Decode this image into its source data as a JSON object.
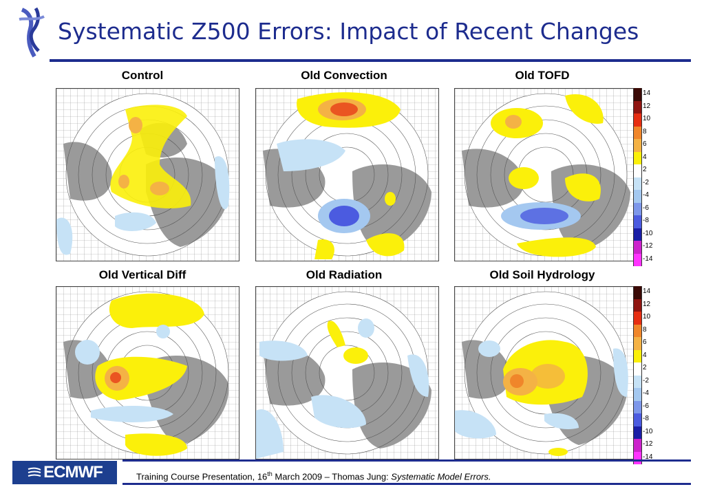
{
  "header": {
    "title": "Systematic Z500 Errors: Impact of Recent Changes"
  },
  "panels": [
    {
      "title": "Control"
    },
    {
      "title": "Old Convection"
    },
    {
      "title": "Old TOFD"
    },
    {
      "title": "Old Vertical Diff"
    },
    {
      "title": "Old Radiation"
    },
    {
      "title": "Old Soil Hydrology"
    }
  ],
  "colorbar": {
    "levels": [
      {
        "label": "14",
        "color": "#3a0a06"
      },
      {
        "label": "12",
        "color": "#8f1410"
      },
      {
        "label": "10",
        "color": "#e62e12"
      },
      {
        "label": "8",
        "color": "#f0862a"
      },
      {
        "label": "6",
        "color": "#f4b245"
      },
      {
        "label": "4",
        "color": "#fbf00a"
      },
      {
        "label": "2",
        "color": "#ffffff"
      },
      {
        "label": "-2",
        "color": "#c6e2f6"
      },
      {
        "label": "-4",
        "color": "#a4c8f0"
      },
      {
        "label": "-6",
        "color": "#7d97ea"
      },
      {
        "label": "-8",
        "color": "#4b5be0"
      },
      {
        "label": "-10",
        "color": "#1a1ea6"
      },
      {
        "label": "-12",
        "color": "#cc22cc"
      },
      {
        "label": "-14",
        "color": "#ff33ff"
      }
    ]
  },
  "footer": {
    "logo_text": "ECMWF",
    "text_before_sup": "Training Course Presentation, 16",
    "sup": "th",
    "text_after_sup": " March 2009 – Thomas Jung: ",
    "italic": "Systematic Model Errors."
  },
  "colors": {
    "title_blue": "#1d2c8e",
    "land": "#9a9a9a",
    "positive": "#fbf00a",
    "negative": "#c6e2f6"
  }
}
